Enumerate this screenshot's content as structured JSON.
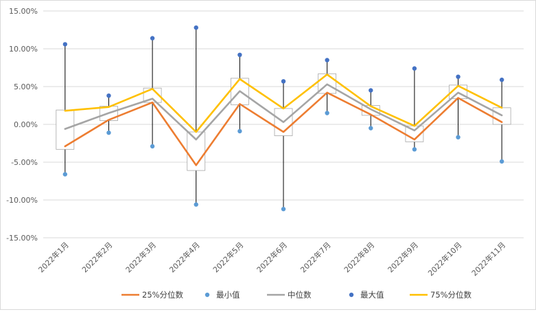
{
  "chart_data": {
    "type": "line",
    "title": "",
    "xlabel": "",
    "ylabel": "",
    "ylim": [
      -0.15,
      0.15
    ],
    "y_ticks": [
      "15.00%",
      "10.00%",
      "5.00%",
      "0.00%",
      "-5.00%",
      "-10.00%",
      "-15.00%"
    ],
    "y_tick_values": [
      0.15,
      0.1,
      0.05,
      0.0,
      -0.05,
      -0.1,
      -0.15
    ],
    "grid": true,
    "legend_position": "bottom",
    "categories": [
      "2022年1月",
      "2022年2月",
      "2022年3月",
      "2022年4月",
      "2022年5月",
      "2022年6月",
      "2022年7月",
      "2022年8月",
      "2022年9月",
      "2022年10月",
      "2022年11月"
    ],
    "series": [
      {
        "name": "25%分位数",
        "kind": "line",
        "color": "#ed7d31",
        "values": [
          -0.029,
          0.006,
          0.029,
          -0.054,
          0.027,
          -0.01,
          0.042,
          0.013,
          -0.02,
          0.035,
          0.003
        ]
      },
      {
        "name": "最小值",
        "kind": "marker",
        "color": "#5b9bd5",
        "values": [
          -0.066,
          -0.011,
          -0.029,
          -0.106,
          -0.009,
          -0.112,
          0.015,
          -0.005,
          -0.033,
          -0.017,
          -0.049
        ]
      },
      {
        "name": "中位数",
        "kind": "line",
        "color": "#a5a5a5",
        "values": [
          -0.006,
          0.015,
          0.034,
          -0.02,
          0.044,
          0.003,
          0.053,
          0.02,
          -0.008,
          0.042,
          0.012
        ]
      },
      {
        "name": "最大值",
        "kind": "marker",
        "color": "#4472c4",
        "values": [
          0.106,
          0.038,
          0.114,
          0.128,
          0.092,
          0.057,
          0.085,
          0.045,
          0.074,
          0.063,
          0.059
        ]
      },
      {
        "name": "75%分位数",
        "kind": "line",
        "color": "#ffc000",
        "values": [
          0.018,
          0.023,
          0.047,
          -0.01,
          0.06,
          0.021,
          0.066,
          0.024,
          -0.002,
          0.051,
          0.022
        ]
      }
    ],
    "boxes": {
      "low": [
        -0.033,
        0.005,
        0.029,
        -0.061,
        0.026,
        -0.015,
        0.041,
        0.012,
        -0.023,
        0.034,
        0.0
      ],
      "high": [
        0.019,
        0.024,
        0.048,
        -0.01,
        0.061,
        0.021,
        0.067,
        0.025,
        -0.002,
        0.052,
        0.022
      ]
    },
    "legend_order": [
      "25%分位数",
      "最小值",
      "中位数",
      "最大值",
      "75%分位数"
    ]
  }
}
